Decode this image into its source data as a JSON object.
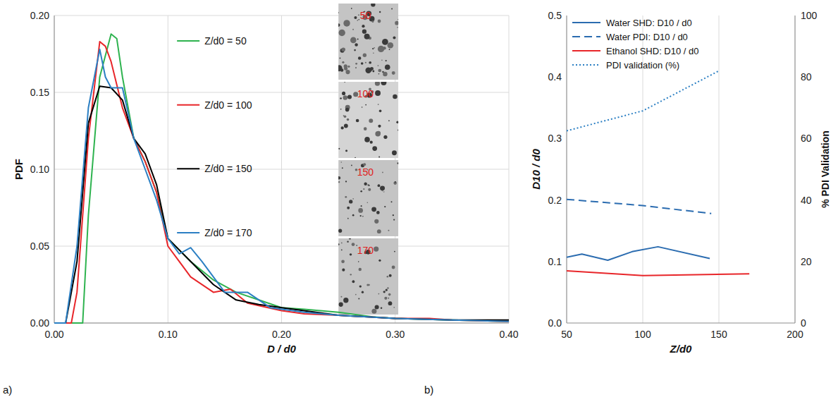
{
  "chart_data": [
    {
      "type": "line",
      "panel_label": "a)",
      "x_label": "D / d0",
      "y_label": "PDF",
      "xlim": [
        0,
        0.4
      ],
      "xticks": [
        {
          "value": 0,
          "label": "0.00"
        },
        {
          "value": 0.1,
          "label": "0.10"
        },
        {
          "value": 0.2,
          "label": "0.20"
        },
        {
          "value": 0.3,
          "label": "0.30"
        },
        {
          "value": 0.4,
          "label": "0.40"
        }
      ],
      "ylim": [
        0,
        0.2
      ],
      "yticks": [
        {
          "value": 0,
          "label": "0.00"
        },
        {
          "value": 0.05,
          "label": "0.05"
        },
        {
          "value": 0.1,
          "label": "0.10"
        },
        {
          "value": 0.15,
          "label": "0.15"
        },
        {
          "value": 0.2,
          "label": "0.20"
        }
      ],
      "grid": true,
      "legend": "center",
      "inset_labels": [
        "50",
        "100",
        "150",
        "170"
      ],
      "series": [
        {
          "name": "Z/d0 = 50",
          "color": "#2eb34f",
          "line_style": "solid",
          "x": [
            0,
            0.025,
            0.03,
            0.04,
            0.05,
            0.055,
            0.06,
            0.07,
            0.08,
            0.09,
            0.1,
            0.12,
            0.14,
            0.16,
            0.18,
            0.2,
            0.22,
            0.25,
            0.28,
            0.3,
            0.35,
            0.4
          ],
          "values": [
            0,
            0,
            0.07,
            0.16,
            0.188,
            0.185,
            0.16,
            0.12,
            0.105,
            0.085,
            0.055,
            0.04,
            0.028,
            0.02,
            0.015,
            0.01,
            0.009,
            0.007,
            0.004,
            0.003,
            0.002,
            0.001
          ]
        },
        {
          "name": "Z/d0 = 100",
          "color": "#e8262a",
          "line_style": "solid",
          "x": [
            0,
            0.015,
            0.02,
            0.03,
            0.04,
            0.045,
            0.05,
            0.06,
            0.07,
            0.08,
            0.09,
            0.1,
            0.12,
            0.14,
            0.155,
            0.17,
            0.2,
            0.22,
            0.25,
            0.3,
            0.33,
            0.35,
            0.4
          ],
          "values": [
            0,
            0,
            0.02,
            0.12,
            0.183,
            0.18,
            0.17,
            0.14,
            0.12,
            0.105,
            0.085,
            0.05,
            0.03,
            0.02,
            0.022,
            0.013,
            0.008,
            0.006,
            0.005,
            0.003,
            0.003,
            0.002,
            0.001
          ]
        },
        {
          "name": "Z/d0 = 150",
          "color": "#000000",
          "line_style": "solid",
          "x": [
            0,
            0.01,
            0.02,
            0.03,
            0.04,
            0.05,
            0.06,
            0.07,
            0.08,
            0.09,
            0.1,
            0.12,
            0.14,
            0.16,
            0.18,
            0.2,
            0.25,
            0.3,
            0.35,
            0.4
          ],
          "values": [
            0,
            0,
            0.04,
            0.13,
            0.154,
            0.153,
            0.145,
            0.12,
            0.11,
            0.09,
            0.055,
            0.04,
            0.025,
            0.015,
            0.012,
            0.01,
            0.005,
            0.003,
            0.002,
            0.002
          ]
        },
        {
          "name": "Z/d0 = 170",
          "color": "#2b7fc3",
          "line_style": "solid",
          "x": [
            0,
            0.01,
            0.02,
            0.03,
            0.04,
            0.045,
            0.05,
            0.06,
            0.07,
            0.08,
            0.09,
            0.1,
            0.11,
            0.12,
            0.13,
            0.15,
            0.17,
            0.19,
            0.22,
            0.25,
            0.3,
            0.35,
            0.4
          ],
          "values": [
            0,
            0,
            0.05,
            0.14,
            0.178,
            0.16,
            0.153,
            0.153,
            0.12,
            0.1,
            0.08,
            0.055,
            0.045,
            0.049,
            0.04,
            0.02,
            0.02,
            0.01,
            0.007,
            0.005,
            0.003,
            0.002,
            0.001
          ]
        }
      ]
    },
    {
      "type": "line",
      "panel_label": "b)",
      "x_label": "Z/d0",
      "y_label": "D10 / d0",
      "y2_label": "% PDI Validation",
      "xlim": [
        50,
        200
      ],
      "xticks": [
        50,
        100,
        150,
        200
      ],
      "ylim": [
        0,
        0.5
      ],
      "yticks": [
        {
          "value": 0,
          "label": "0.0"
        },
        {
          "value": 0.1,
          "label": "0.1"
        },
        {
          "value": 0.2,
          "label": "0.2"
        },
        {
          "value": 0.3,
          "label": "0.3"
        },
        {
          "value": 0.4,
          "label": "0.4"
        },
        {
          "value": 0.5,
          "label": "0.5"
        }
      ],
      "y2lim": [
        0,
        100
      ],
      "y2ticks": [
        0,
        20,
        40,
        60,
        80,
        100
      ],
      "grid": "x",
      "legend": "upper left",
      "series": [
        {
          "name": "Water SHD: D10 / d0",
          "color": "#2b6cb0",
          "line_style": "solid",
          "x": [
            50,
            60,
            77,
            93,
            110,
            144
          ],
          "values": [
            0.107,
            0.112,
            0.102,
            0.116,
            0.124,
            0.105
          ]
        },
        {
          "name": "Water PDI: D10 / d0",
          "color": "#2b6cb0",
          "line_style": "dashed",
          "x": [
            50,
            100,
            145
          ],
          "values": [
            0.201,
            0.191,
            0.178
          ]
        },
        {
          "name": "Ethanol SHD: D10 / d0",
          "color": "#e8262a",
          "line_style": "solid",
          "x": [
            50,
            100,
            170
          ],
          "values": [
            0.085,
            0.077,
            0.08
          ]
        },
        {
          "name": "PDI validation (%)",
          "color": "#2b7fc3",
          "line_style": "dotted",
          "axis": "y2",
          "x": [
            50,
            100,
            150
          ],
          "values": [
            62.5,
            69,
            82
          ]
        }
      ]
    }
  ]
}
